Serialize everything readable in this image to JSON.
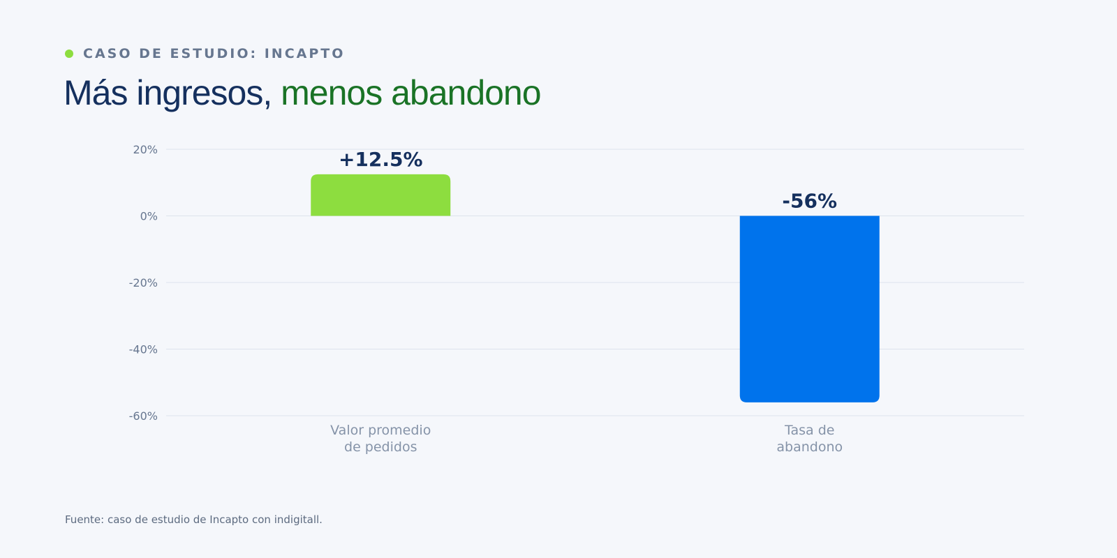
{
  "eyebrow": {
    "text": "CASO DE ESTUDIO: INCAPTO"
  },
  "title": {
    "part1": "Más ingresos, ",
    "part2": "menos abandono"
  },
  "source": "Fuente: caso de estudio de Incapto con indigitall.",
  "colors": {
    "background": "#f5f7fb",
    "title_dark": "#15305e",
    "title_green": "#1a7326",
    "accent_green": "#8ddd3f",
    "accent_blue": "#0073ec",
    "label_dark": "#15305e",
    "muted": "#66768f",
    "grid": "#dde3ec"
  },
  "chart_data": {
    "type": "bar",
    "categories": [
      [
        "Valor promedio",
        "de pedidos"
      ],
      [
        "Tasa de",
        "abandono"
      ]
    ],
    "values": [
      12.5,
      -56
    ],
    "data_labels": [
      "+12.5%",
      "-56%"
    ],
    "bar_colors": [
      "#8ddd3f",
      "#0073ec"
    ],
    "yticks": [
      "20%",
      "0%",
      "-20%",
      "-40%",
      "-60%"
    ],
    "ytick_values": [
      20,
      0,
      -20,
      -40,
      -60
    ],
    "ylim": [
      -60,
      20
    ],
    "grid": true,
    "title": "",
    "xlabel": "",
    "ylabel": ""
  }
}
